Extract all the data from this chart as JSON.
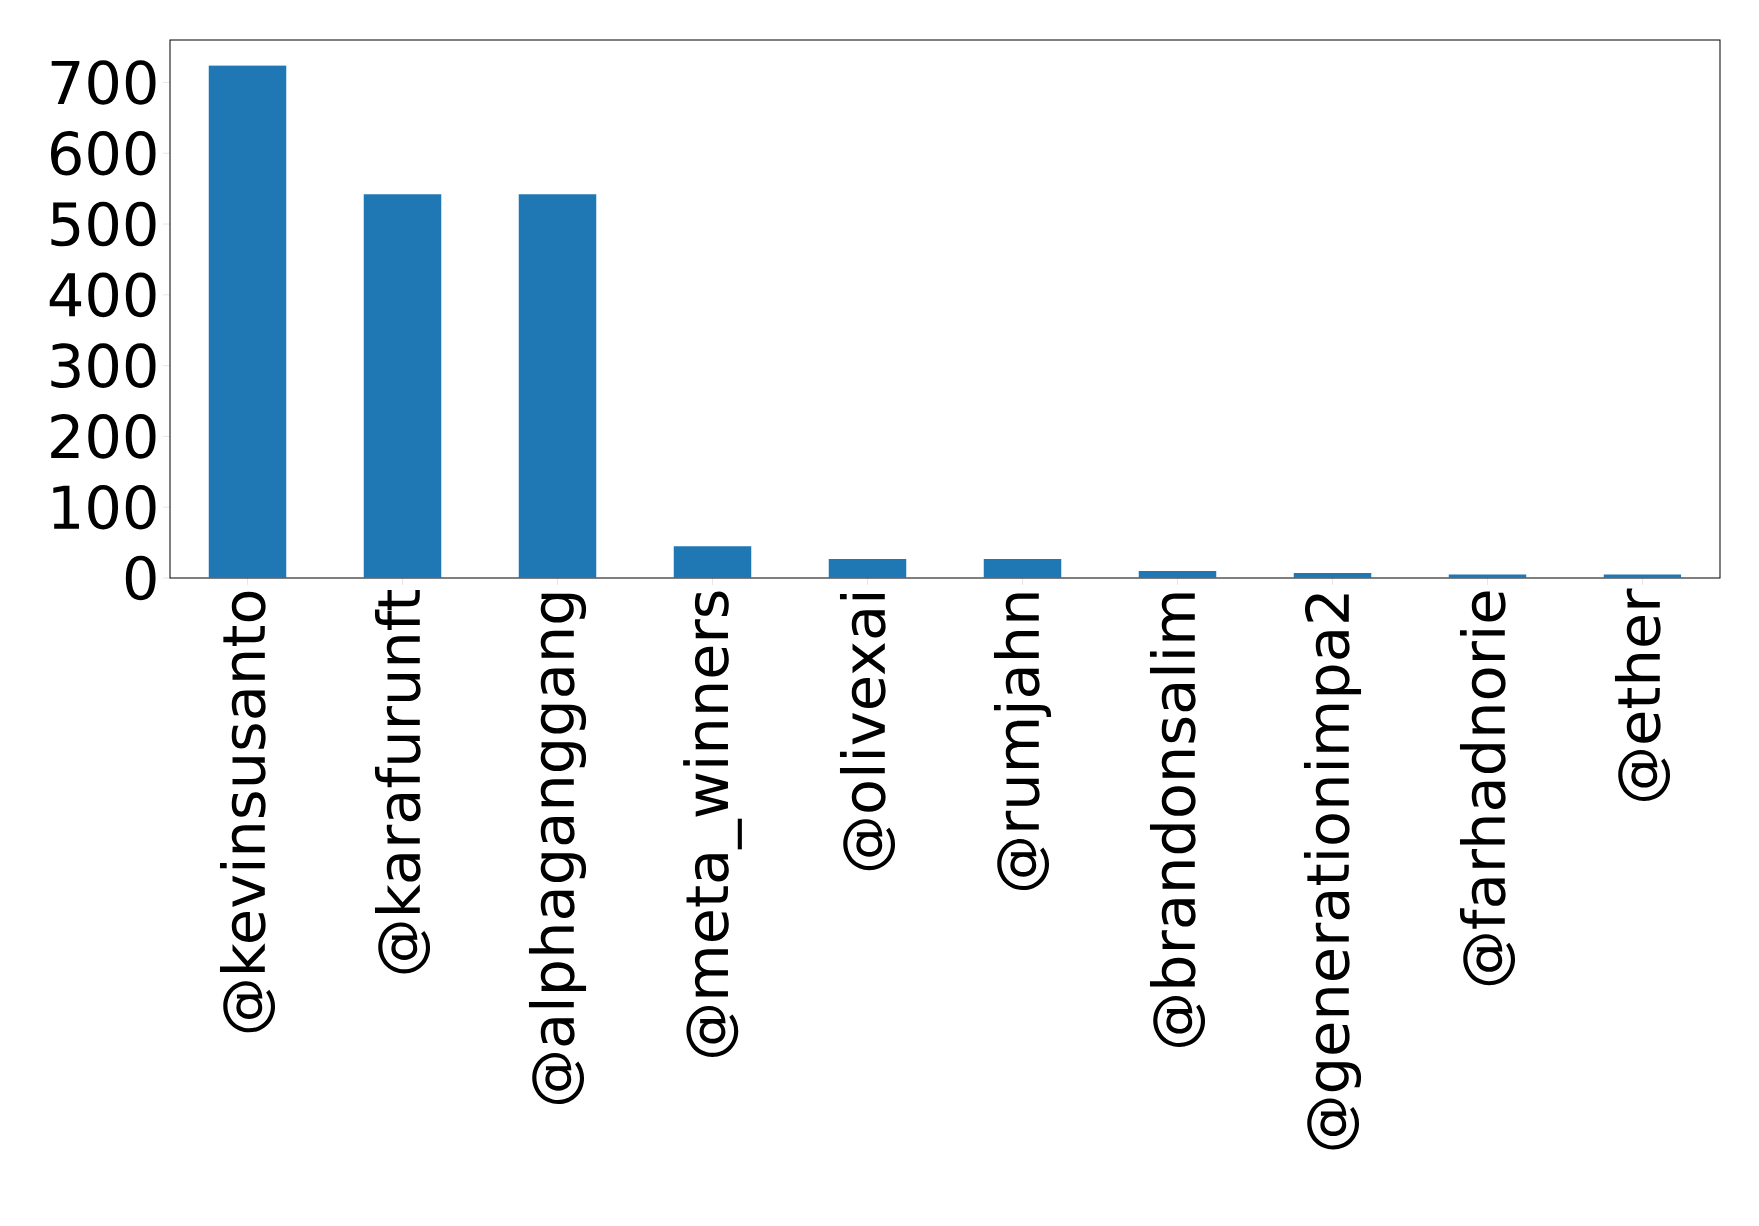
{
  "chart_data": {
    "type": "bar",
    "categories": [
      "@kevinsusanto",
      "@karafurunft",
      "@alphaganggang",
      "@meta_winners",
      "@olivexai",
      "@rumjahn",
      "@brandonsalim",
      "@generationimpa2",
      "@farhadnorie",
      "@ether"
    ],
    "values": [
      724,
      542,
      542,
      45,
      27,
      27,
      10,
      7,
      5,
      5
    ],
    "color": "#1f77b4",
    "ylim": [
      0,
      760
    ],
    "yticks": [
      0,
      100,
      200,
      300,
      400,
      500,
      600,
      700
    ],
    "grid": false
  }
}
